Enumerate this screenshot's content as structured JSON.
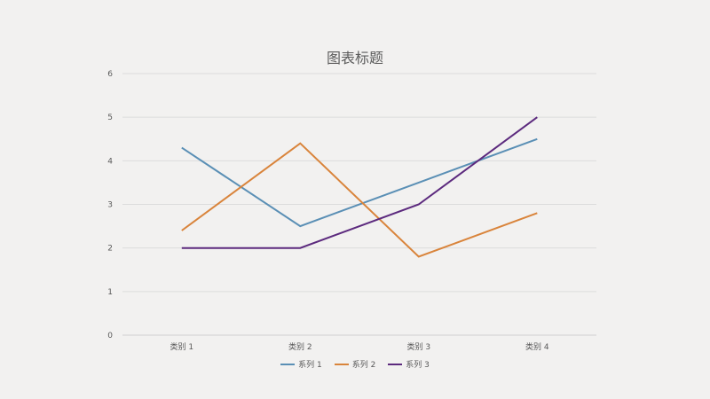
{
  "chart_data": {
    "type": "line",
    "title": "图表标题",
    "categories": [
      "类别 1",
      "类别 2",
      "类别 3",
      "类别 4"
    ],
    "ylim": [
      0,
      6
    ],
    "yticks": [
      "0",
      "1",
      "2",
      "3",
      "4",
      "5",
      "6"
    ],
    "grid": true,
    "legend_position": "bottom",
    "series": [
      {
        "name": "系列 1",
        "color": "#5a8fb5",
        "values": [
          4.3,
          2.5,
          3.5,
          4.5
        ]
      },
      {
        "name": "系列 2",
        "color": "#d9843b",
        "values": [
          2.4,
          4.4,
          1.8,
          2.8
        ]
      },
      {
        "name": "系列 3",
        "color": "#5c2a7e",
        "values": [
          2.0,
          2.0,
          3.0,
          5.0
        ]
      }
    ]
  }
}
